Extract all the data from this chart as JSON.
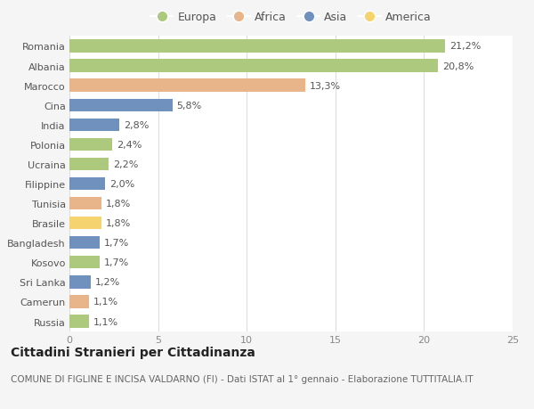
{
  "countries": [
    "Russia",
    "Camerun",
    "Sri Lanka",
    "Kosovo",
    "Bangladesh",
    "Brasile",
    "Tunisia",
    "Filippine",
    "Ucraina",
    "Polonia",
    "India",
    "Cina",
    "Marocco",
    "Albania",
    "Romania"
  ],
  "values": [
    1.1,
    1.1,
    1.2,
    1.7,
    1.7,
    1.8,
    1.8,
    2.0,
    2.2,
    2.4,
    2.8,
    5.8,
    13.3,
    20.8,
    21.2
  ],
  "labels": [
    "1,1%",
    "1,1%",
    "1,2%",
    "1,7%",
    "1,7%",
    "1,8%",
    "1,8%",
    "2,0%",
    "2,2%",
    "2,4%",
    "2,8%",
    "5,8%",
    "13,3%",
    "20,8%",
    "21,2%"
  ],
  "continents": [
    "Europa",
    "Africa",
    "Asia",
    "Europa",
    "Asia",
    "America",
    "Africa",
    "Asia",
    "Europa",
    "Europa",
    "Asia",
    "Asia",
    "Africa",
    "Europa",
    "Europa"
  ],
  "continent_colors": {
    "Europa": "#adc97e",
    "Africa": "#e8b48a",
    "Asia": "#7090be",
    "America": "#f5d36e"
  },
  "legend_order": [
    "Europa",
    "Africa",
    "Asia",
    "America"
  ],
  "title": "Cittadini Stranieri per Cittadinanza",
  "subtitle": "COMUNE DI FIGLINE E INCISA VALDARNO (FI) - Dati ISTAT al 1° gennaio - Elaborazione TUTTITALIA.IT",
  "xlim": [
    0,
    25
  ],
  "xticks": [
    0,
    5,
    10,
    15,
    20,
    25
  ],
  "background_color": "#f5f5f5",
  "plot_bg_color": "#ffffff",
  "grid_color": "#dddddd",
  "bar_height": 0.65,
  "title_fontsize": 10,
  "subtitle_fontsize": 7.5,
  "label_fontsize": 8,
  "tick_fontsize": 8,
  "legend_fontsize": 9
}
